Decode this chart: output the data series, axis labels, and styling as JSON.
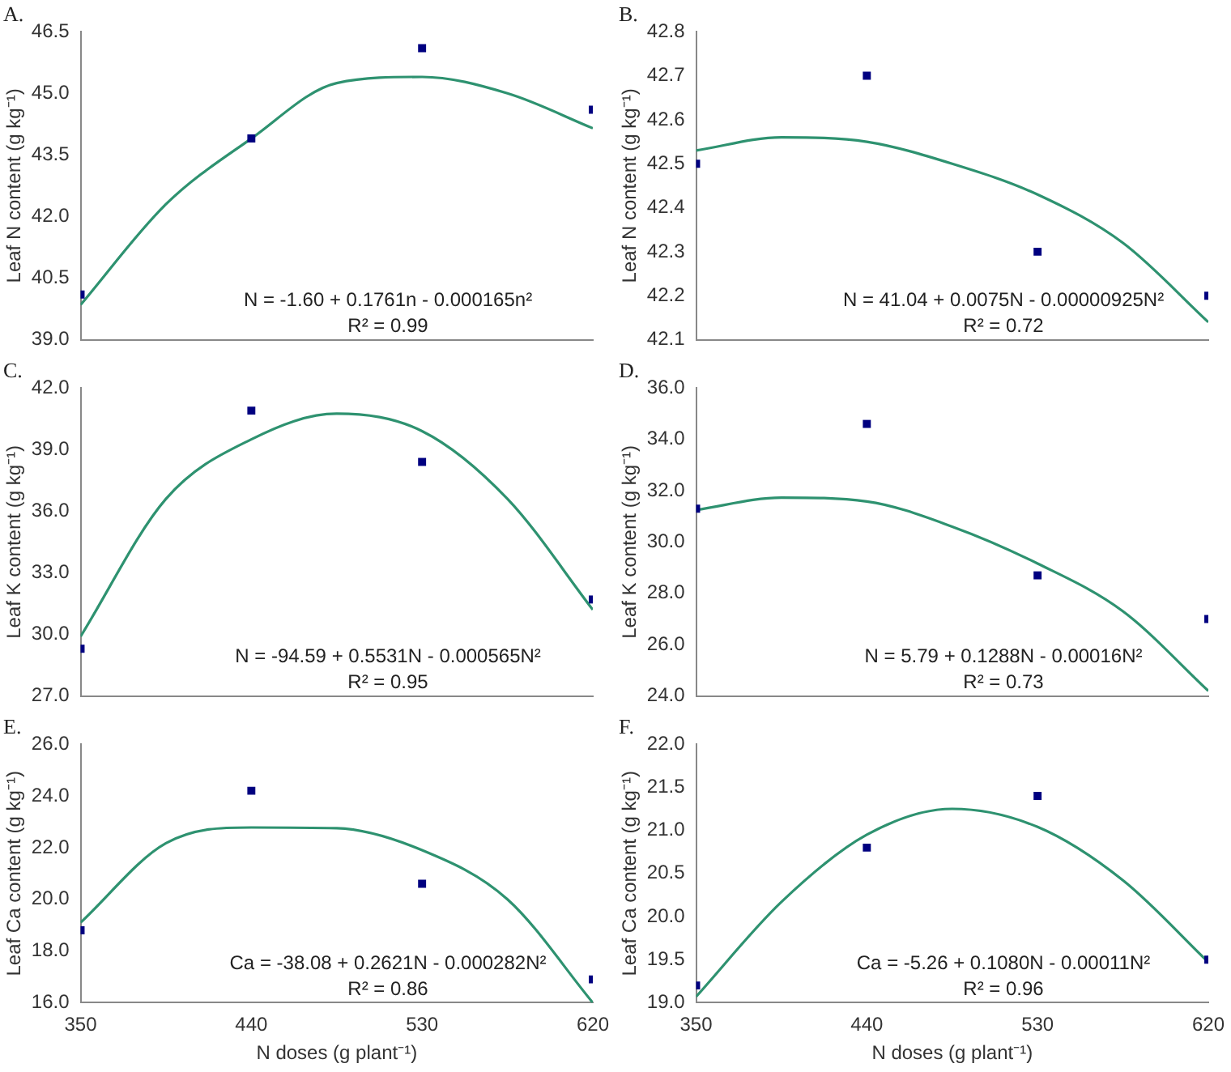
{
  "chart_data": [
    {
      "type": "scatter",
      "title": "A.",
      "ylabel": "Leaf N content (g kg⁻¹)",
      "x": [
        350,
        440,
        530,
        620
      ],
      "xlim": [
        350,
        620
      ],
      "xticks": [
        350,
        440,
        530,
        620
      ],
      "ylim": [
        39,
        46.5
      ],
      "yticks": [
        {
          "value": 39,
          "label": "39.0"
        },
        {
          "value": 40.5,
          "label": "40.5"
        },
        {
          "value": 42,
          "label": "42.0"
        },
        {
          "value": 43.5,
          "label": "43.5"
        },
        {
          "value": 45,
          "label": "45.0"
        },
        {
          "value": 46.5,
          "label": "46.5"
        }
      ],
      "tick_labels": "y",
      "grid": false,
      "legend": false,
      "series": [
        {
          "type": "scatter",
          "marker": "square",
          "color": "#000080",
          "values": [
            40.1,
            43.9,
            46.1,
            44.6
          ]
        },
        {
          "type": "line",
          "marker": "none",
          "color": "#2e9270",
          "x": [
            350,
            395,
            440,
            485,
            530,
            575,
            620
          ],
          "values": [
            39.85,
            42.3,
            43.9,
            45.25,
            45.4,
            45.0,
            44.15
          ]
        }
      ],
      "annotations": [
        "N = -1.60 + 0.1761n - 0.000165n²",
        "R² = 0.99"
      ]
    },
    {
      "type": "scatter",
      "title": "B.",
      "ylabel": "Leaf N content (g kg⁻¹)",
      "x": [
        350,
        440,
        530,
        620
      ],
      "xlim": [
        350,
        620
      ],
      "xticks": [
        350,
        440,
        530,
        620
      ],
      "ylim": [
        42.1,
        42.8
      ],
      "yticks": [
        42.1,
        42.2,
        42.3,
        42.4,
        42.5,
        42.6,
        42.7,
        42.8
      ],
      "tick_labels": "y",
      "grid": false,
      "legend": false,
      "series": [
        {
          "type": "scatter",
          "marker": "square",
          "color": "#000080",
          "values": [
            42.5,
            42.7,
            42.3,
            42.2
          ]
        },
        {
          "type": "line",
          "marker": "none",
          "color": "#2e9270",
          "x": [
            350,
            395,
            440,
            485,
            530,
            575,
            620
          ],
          "values": [
            42.53,
            42.56,
            42.55,
            42.5,
            42.43,
            42.32,
            42.14
          ]
        }
      ],
      "annotations": [
        "N = 41.04 + 0.0075N - 0.00000925N²",
        "R² = 0.72"
      ]
    },
    {
      "type": "scatter",
      "title": "C.",
      "ylabel": "Leaf K content (g kg⁻¹)",
      "x": [
        350,
        440,
        530,
        620
      ],
      "xlim": [
        350,
        620
      ],
      "xticks": [
        350,
        440,
        530,
        620
      ],
      "ylim": [
        27,
        42
      ],
      "yticks": [
        {
          "value": 27,
          "label": "27.0"
        },
        {
          "value": 30,
          "label": "30.0"
        },
        {
          "value": 33,
          "label": "33.0"
        },
        {
          "value": 36,
          "label": "36.0"
        },
        {
          "value": 39,
          "label": "39.0"
        },
        {
          "value": 42,
          "label": "42.0"
        }
      ],
      "tick_labels": "y",
      "grid": false,
      "legend": false,
      "series": [
        {
          "type": "scatter",
          "marker": "square",
          "color": "#000080",
          "values": [
            29.3,
            40.9,
            38.4,
            31.7
          ]
        },
        {
          "type": "line",
          "marker": "none",
          "color": "#2e9270",
          "x": [
            350,
            395,
            440,
            485,
            530,
            575,
            620
          ],
          "values": [
            29.9,
            36.6,
            39.5,
            40.75,
            39.9,
            36.6,
            31.2
          ]
        }
      ],
      "annotations": [
        "N = -94.59 + 0.5531N - 0.000565N²",
        "R² = 0.95"
      ]
    },
    {
      "type": "scatter",
      "title": "D.",
      "ylabel": "Leaf K content (g kg⁻¹)",
      "x": [
        350,
        440,
        530,
        620
      ],
      "xlim": [
        350,
        620
      ],
      "xticks": [
        350,
        440,
        530,
        620
      ],
      "ylim": [
        24,
        36
      ],
      "yticks": [
        {
          "value": 24,
          "label": "24.0"
        },
        {
          "value": 26,
          "label": "26.0"
        },
        {
          "value": 28,
          "label": "28.0"
        },
        {
          "value": 30,
          "label": "30.0"
        },
        {
          "value": 32,
          "label": "32.0"
        },
        {
          "value": 34,
          "label": "34.0"
        },
        {
          "value": 36,
          "label": "36.0"
        }
      ],
      "tick_labels": "y",
      "grid": false,
      "legend": false,
      "series": [
        {
          "type": "scatter",
          "marker": "square",
          "color": "#000080",
          "values": [
            31.3,
            34.6,
            28.7,
            27.0
          ]
        },
        {
          "type": "line",
          "marker": "none",
          "color": "#2e9270",
          "x": [
            350,
            395,
            440,
            485,
            530,
            575,
            620
          ],
          "values": [
            31.25,
            31.73,
            31.58,
            30.6,
            29.16,
            27.3,
            24.2
          ]
        }
      ],
      "annotations": [
        "N = 5.79 + 0.1288N - 0.00016N²",
        "R² = 0.73"
      ]
    },
    {
      "type": "scatter",
      "title": "E.",
      "ylabel": "Leaf Ca content (g kg⁻¹)",
      "xlabel": "N doses (g plant⁻¹)",
      "x": [
        350,
        440,
        530,
        620
      ],
      "xlim": [
        350,
        620
      ],
      "xticks": [
        350,
        440,
        530,
        620
      ],
      "ylim": [
        16,
        26
      ],
      "yticks": [
        {
          "value": 16,
          "label": "16.0"
        },
        {
          "value": 18,
          "label": "18.0"
        },
        {
          "value": 20,
          "label": "20.0"
        },
        {
          "value": 22,
          "label": "22.0"
        },
        {
          "value": 24,
          "label": "24.0"
        },
        {
          "value": 26,
          "label": "26.0"
        }
      ],
      "grid": false,
      "legend": false,
      "series": [
        {
          "type": "scatter",
          "marker": "square",
          "color": "#000080",
          "values": [
            18.8,
            24.2,
            20.6,
            16.9
          ]
        },
        {
          "type": "line",
          "marker": "none",
          "color": "#2e9270",
          "x": [
            350,
            395,
            440,
            485,
            530,
            575,
            620
          ],
          "values": [
            19.1,
            22.17,
            22.78,
            22.75,
            21.9,
            20.0,
            16.0
          ]
        }
      ],
      "annotations": [
        "Ca = -38.08 + 0.2621N - 0.000282N²",
        "R² = 0.86"
      ]
    },
    {
      "type": "scatter",
      "title": "F.",
      "ylabel": "Leaf Ca content (g kg⁻¹)",
      "xlabel": "N doses (g plant⁻¹)",
      "x": [
        350,
        440,
        530,
        620
      ],
      "xlim": [
        350,
        620
      ],
      "xticks": [
        350,
        440,
        530,
        620
      ],
      "ylim": [
        19,
        22
      ],
      "yticks": [
        {
          "value": 19,
          "label": "19.0"
        },
        {
          "value": 19.5,
          "label": "19.5"
        },
        {
          "value": 20,
          "label": "20.0"
        },
        {
          "value": 20.5,
          "label": "20.5"
        },
        {
          "value": 21,
          "label": "21.0"
        },
        {
          "value": 21.5,
          "label": "21.5"
        },
        {
          "value": 22,
          "label": "22.0"
        }
      ],
      "grid": false,
      "legend": false,
      "series": [
        {
          "type": "scatter",
          "marker": "square",
          "color": "#000080",
          "values": [
            19.2,
            20.8,
            21.4,
            19.5
          ]
        },
        {
          "type": "line",
          "marker": "none",
          "color": "#2e9270",
          "x": [
            350,
            395,
            440,
            485,
            530,
            575,
            620
          ],
          "values": [
            19.07,
            20.17,
            20.95,
            21.25,
            21.04,
            20.42,
            19.47
          ]
        }
      ],
      "annotations": [
        "Ca = -5.26 + 0.1080N - 0.00011N²",
        "R² = 0.96"
      ]
    }
  ]
}
